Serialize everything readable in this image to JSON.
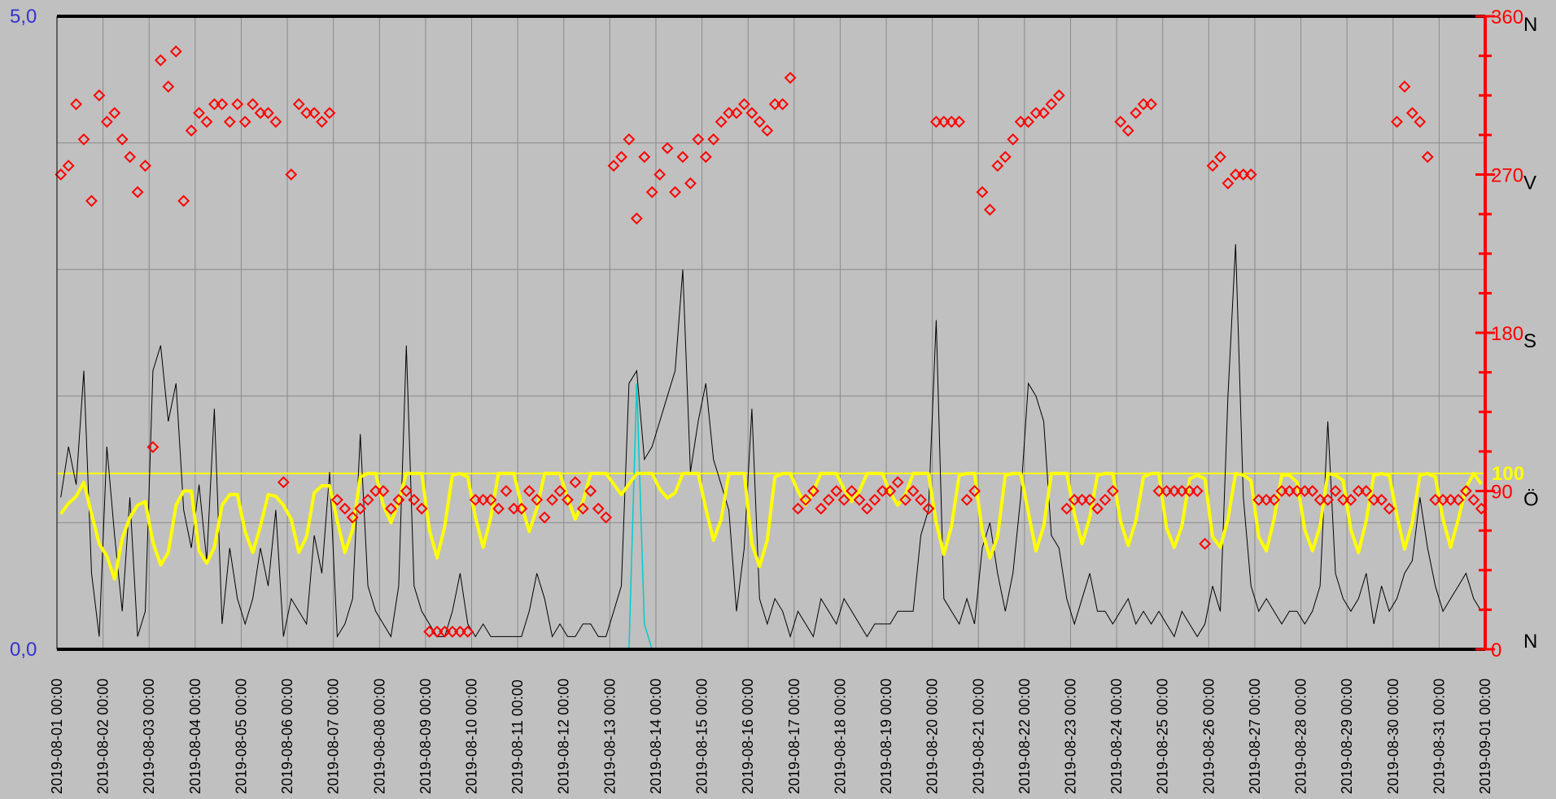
{
  "chart_data": {
    "type": "line",
    "title": "",
    "x_start": "2019-08-01 00:00",
    "x_end": "2019-09-01 00:00",
    "x_tick_labels": [
      "2019-08-01 00:00",
      "2019-08-02 00:00",
      "2019-08-03 00:00",
      "2019-08-04 00:00",
      "2019-08-05 00:00",
      "2019-08-06 00:00",
      "2019-08-07 00:00",
      "2019-08-08 00:00",
      "2019-08-09 00:00",
      "2019-08-10 00:00",
      "2019-08-11 00:00",
      "2019-08-12 00:00",
      "2019-08-13 00:00",
      "2019-08-14 00:00",
      "2019-08-15 00:00",
      "2019-08-16 00:00",
      "2019-08-17 00:00",
      "2019-08-18 00:00",
      "2019-08-19 00:00",
      "2019-08-20 00:00",
      "2019-08-21 00:00",
      "2019-08-22 00:00",
      "2019-08-23 00:00",
      "2019-08-24 00:00",
      "2019-08-25 00:00",
      "2019-08-26 00:00",
      "2019-08-27 00:00",
      "2019-08-28 00:00",
      "2019-08-29 00:00",
      "2019-08-30 00:00",
      "2019-08-31 00:00",
      "2019-09-01 00:00"
    ],
    "y_left": {
      "range": [
        0,
        5
      ],
      "tick_labels": [
        "0,0",
        "5,0"
      ]
    },
    "y_right": {
      "range": [
        0,
        360
      ],
      "tick_labels": [
        "0",
        "90",
        "180",
        "270",
        "360"
      ],
      "direction_labels": [
        "N",
        "Ö",
        "S",
        "V",
        "N"
      ]
    },
    "reference_line": {
      "axis": "right",
      "value": 100,
      "label": "100"
    },
    "grid": true,
    "colors": {
      "background": "#c0c0c0",
      "speed": "#000000",
      "direction": "#ff0000",
      "humidity": "#ffff00",
      "calm": "#00cccc",
      "left_axis": "#3333cc",
      "right_axis": "#ff0000"
    },
    "series": [
      {
        "style": "black-thin-line",
        "axis": "left",
        "values": [
          [
            1.2,
            1.6,
            1.3,
            2.2,
            0.6,
            0.1
          ],
          [
            1.6,
            0.9,
            0.3,
            1.2,
            0.1,
            0.3
          ],
          [
            2.2,
            2.4,
            1.8,
            2.1,
            1.1,
            0.8
          ],
          [
            1.3,
            0.7,
            1.9,
            0.2,
            0.8,
            0.4
          ],
          [
            0.2,
            0.4,
            0.8,
            0.5,
            1.1,
            0.1
          ],
          [
            0.4,
            0.3,
            0.2,
            0.9,
            0.6,
            1.4
          ],
          [
            0.1,
            0.2,
            0.4,
            1.7,
            0.5,
            0.3
          ],
          [
            0.2,
            0.1,
            0.5,
            2.4,
            0.5,
            0.3
          ],
          [
            0.2,
            0.1,
            0.1,
            0.3,
            0.6,
            0.2
          ],
          [
            0.1,
            0.2,
            0.1,
            0.1,
            0.1,
            0.1
          ],
          [
            0.1,
            0.3,
            0.6,
            0.4,
            0.1,
            0.2
          ],
          [
            0.1,
            0.1,
            0.2,
            0.2,
            0.1,
            0.1
          ],
          [
            0.3,
            0.5,
            2.1,
            2.2,
            1.5,
            1.6
          ],
          [
            1.8,
            2.0,
            2.2,
            3.0,
            1.4,
            1.8
          ],
          [
            2.1,
            1.5,
            1.3,
            1.1,
            0.3,
            0.8
          ],
          [
            1.9,
            0.4,
            0.2,
            0.4,
            0.3,
            0.1
          ],
          [
            0.3,
            0.2,
            0.1,
            0.4,
            0.3,
            0.2
          ],
          [
            0.4,
            0.3,
            0.2,
            0.1,
            0.2,
            0.2
          ],
          [
            0.2,
            0.3,
            0.3,
            0.3,
            0.9,
            1.1
          ],
          [
            2.6,
            0.4,
            0.3,
            0.2,
            0.4,
            0.2
          ],
          [
            0.8,
            1.0,
            0.6,
            0.3,
            0.6,
            1.2
          ],
          [
            2.1,
            2.0,
            1.8,
            0.9,
            0.8,
            0.4
          ],
          [
            0.2,
            0.4,
            0.6,
            0.3,
            0.3,
            0.2
          ],
          [
            0.3,
            0.4,
            0.2,
            0.3,
            0.2,
            0.3
          ],
          [
            0.2,
            0.1,
            0.3,
            0.2,
            0.1,
            0.2
          ],
          [
            0.5,
            0.3,
            2.0,
            3.2,
            1.2,
            0.5
          ],
          [
            0.3,
            0.4,
            0.3,
            0.2,
            0.3,
            0.3
          ],
          [
            0.2,
            0.3,
            0.5,
            1.8,
            0.6,
            0.4
          ],
          [
            0.3,
            0.4,
            0.6,
            0.2,
            0.5,
            0.3
          ],
          [
            0.4,
            0.6,
            0.7,
            1.2,
            0.8,
            0.5
          ],
          [
            0.3,
            0.4,
            0.5,
            0.6,
            0.4,
            0.3
          ]
        ]
      },
      {
        "style": "yellow-line",
        "axis": "right",
        "values": [
          [
            77,
            83,
            87,
            95,
            77,
            60
          ],
          [
            53,
            40,
            63,
            75,
            82,
            84
          ],
          [
            61,
            48,
            55,
            82,
            90,
            90
          ],
          [
            56,
            49,
            58,
            82,
            88,
            88
          ],
          [
            67,
            55,
            70,
            88,
            87,
            82
          ],
          [
            74,
            55,
            64,
            89,
            93,
            93
          ],
          [
            73,
            55,
            68,
            98,
            100,
            100
          ],
          [
            82,
            72,
            84,
            100,
            100,
            100
          ],
          [
            68,
            52,
            70,
            99,
            100,
            98
          ],
          [
            75,
            58,
            75,
            100,
            100,
            100
          ],
          [
            82,
            67,
            80,
            100,
            100,
            100
          ],
          [
            86,
            74,
            84,
            100,
            100,
            100
          ],
          [
            94,
            88,
            94,
            100,
            100,
            100
          ],
          [
            91,
            86,
            89,
            100,
            100,
            100
          ],
          [
            80,
            62,
            74,
            100,
            100,
            100
          ],
          [
            60,
            47,
            62,
            98,
            100,
            100
          ],
          [
            90,
            82,
            90,
            100,
            100,
            100
          ],
          [
            91,
            84,
            90,
            100,
            100,
            100
          ],
          [
            89,
            82,
            88,
            100,
            100,
            100
          ],
          [
            72,
            54,
            70,
            99,
            100,
            100
          ],
          [
            67,
            52,
            64,
            99,
            100,
            100
          ],
          [
            78,
            56,
            70,
            100,
            100,
            100
          ],
          [
            77,
            60,
            75,
            99,
            100,
            100
          ],
          [
            73,
            59,
            73,
            98,
            100,
            100
          ],
          [
            69,
            58,
            70,
            97,
            99,
            97
          ],
          [
            64,
            58,
            74,
            100,
            99,
            96
          ],
          [
            64,
            56,
            74,
            99,
            99,
            95
          ],
          [
            68,
            56,
            70,
            100,
            99,
            96
          ],
          [
            68,
            55,
            73,
            99,
            100,
            99
          ],
          [
            76,
            57,
            72,
            99,
            100,
            98
          ],
          [
            74,
            58,
            74,
            92,
            100,
            94
          ]
        ]
      },
      {
        "style": "red-diamond-markers",
        "axis": "right",
        "values": [
          [
            270,
            275,
            310,
            290,
            255,
            315
          ],
          [
            300,
            305,
            290,
            280,
            260,
            275
          ],
          [
            115,
            335,
            320,
            340,
            255,
            295
          ],
          [
            305,
            300,
            310,
            310,
            300,
            310
          ],
          [
            300,
            310,
            305,
            305,
            300,
            95
          ],
          [
            270,
            310,
            305,
            305,
            300,
            305
          ],
          [
            85,
            80,
            75,
            80,
            85,
            90
          ],
          [
            90,
            80,
            85,
            90,
            85,
            80
          ],
          [
            10,
            10,
            10,
            10,
            10,
            10
          ],
          [
            85,
            85,
            85,
            80,
            90,
            80
          ],
          [
            80,
            90,
            85,
            75,
            85,
            90
          ],
          [
            85,
            95,
            80,
            90,
            80,
            75
          ],
          [
            275,
            280,
            290,
            245,
            280,
            260
          ],
          [
            270,
            285,
            260,
            280,
            265,
            290
          ],
          [
            280,
            290,
            300,
            305,
            305,
            310
          ],
          [
            305,
            300,
            295,
            310,
            310,
            325
          ],
          [
            80,
            85,
            90,
            80,
            85,
            90
          ],
          [
            85,
            90,
            85,
            80,
            85,
            90
          ],
          [
            90,
            95,
            85,
            90,
            85,
            80
          ],
          [
            300,
            300,
            300,
            300,
            85,
            90
          ],
          [
            260,
            250,
            275,
            280,
            290,
            300
          ],
          [
            300,
            305,
            305,
            310,
            315,
            80
          ],
          [
            85,
            85,
            85,
            80,
            85,
            90
          ],
          [
            300,
            295,
            305,
            310,
            310,
            90
          ],
          [
            90,
            90,
            90,
            90,
            90,
            60
          ],
          [
            275,
            280,
            265,
            270,
            270,
            270
          ],
          [
            85,
            85,
            85,
            90,
            90,
            90
          ],
          [
            90,
            90,
            85,
            85,
            90,
            85
          ],
          [
            85,
            90,
            90,
            85,
            85,
            80
          ],
          [
            300,
            320,
            305,
            300,
            280,
            85
          ],
          [
            85,
            85,
            85,
            90,
            85,
            80
          ]
        ]
      },
      {
        "style": "cyan-thin-line",
        "axis": "left",
        "values": [
          [
            0,
            0,
            0,
            0,
            0,
            0
          ],
          [
            0,
            0,
            0,
            0,
            0,
            0
          ],
          [
            0,
            0,
            0,
            0,
            0,
            0
          ],
          [
            0,
            0,
            0,
            0,
            0,
            0
          ],
          [
            0,
            0,
            0,
            0,
            0,
            0
          ],
          [
            0,
            0,
            0,
            0,
            0,
            0
          ],
          [
            0,
            0,
            0,
            0,
            0,
            0
          ],
          [
            0,
            0,
            0,
            0,
            0,
            0
          ],
          [
            0,
            0,
            0,
            0,
            0,
            0
          ],
          [
            0,
            0,
            0,
            0,
            0,
            0
          ],
          [
            0,
            0,
            0,
            0,
            0,
            0
          ],
          [
            0,
            0,
            0,
            0,
            0,
            0
          ],
          [
            0,
            0,
            0,
            2.1,
            0.2,
            0
          ],
          [
            0,
            0,
            0,
            0,
            0,
            0
          ],
          [
            0,
            0,
            0,
            0,
            0,
            0
          ],
          [
            0,
            0,
            0,
            0,
            0,
            0
          ],
          [
            0,
            0,
            0,
            0,
            0,
            0
          ],
          [
            0,
            0,
            0,
            0,
            0,
            0
          ],
          [
            0,
            0,
            0,
            0,
            0,
            0
          ],
          [
            0,
            0,
            0,
            0,
            0,
            0
          ],
          [
            0,
            0,
            0,
            0,
            0,
            0
          ],
          [
            0,
            0,
            0,
            0,
            0,
            0
          ],
          [
            0,
            0,
            0,
            0,
            0,
            0
          ],
          [
            0,
            0,
            0,
            0,
            0,
            0
          ],
          [
            0,
            0,
            0,
            0,
            0,
            0
          ],
          [
            0,
            0,
            0,
            0,
            0,
            0
          ],
          [
            0,
            0,
            0,
            0,
            0,
            0
          ],
          [
            0,
            0,
            0,
            0,
            0,
            0
          ],
          [
            0,
            0,
            0,
            0,
            0,
            0
          ],
          [
            0,
            0,
            0,
            0,
            0,
            0
          ],
          [
            0,
            0,
            0,
            0,
            0,
            0
          ]
        ]
      }
    ]
  }
}
